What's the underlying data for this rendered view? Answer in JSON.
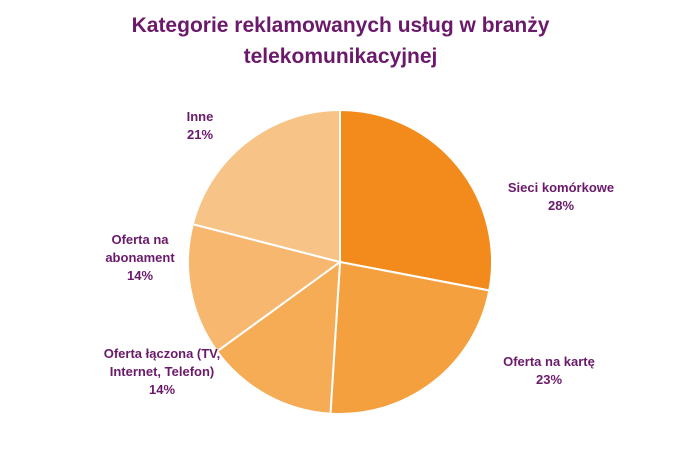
{
  "chart_data": {
    "type": "pie",
    "title_lines": [
      "Kategorie reklamowanych usług w branży",
      "telekomunikacyjnej"
    ],
    "slices": [
      {
        "label_lines": [
          "Sieci komórkowe"
        ],
        "pct_label": "28%",
        "value": 28,
        "color": "#f28b1c"
      },
      {
        "label_lines": [
          "Oferta na kartę"
        ],
        "pct_label": "23%",
        "value": 23,
        "color": "#f5a03f"
      },
      {
        "label_lines": [
          "Oferta łączona (TV,",
          "Internet, Telefon)"
        ],
        "pct_label": "14%",
        "value": 14,
        "color": "#f6ab55"
      },
      {
        "label_lines": [
          "Oferta na",
          "abonament"
        ],
        "pct_label": "14%",
        "value": 14,
        "color": "#f7b76e"
      },
      {
        "label_lines": [
          "Inne"
        ],
        "pct_label": "21%",
        "value": 21,
        "color": "#f8c386"
      }
    ]
  }
}
